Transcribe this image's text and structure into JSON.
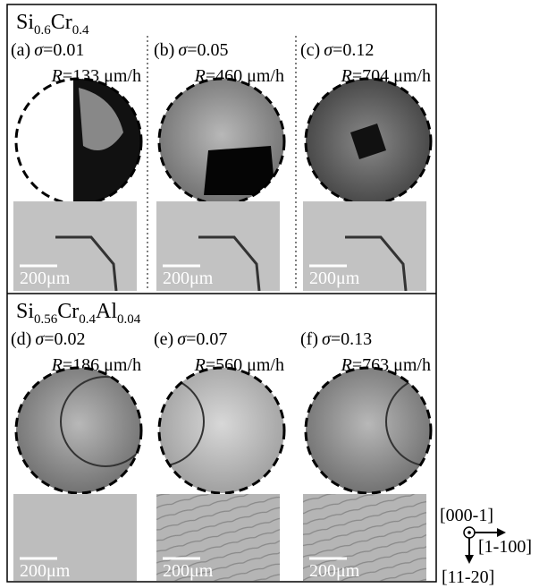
{
  "sections": [
    {
      "formula": [
        {
          "text": "Si",
          "sub": "0.6"
        },
        {
          "text": "Cr",
          "sub": "0.4"
        }
      ],
      "panels": [
        {
          "label": "(a)",
          "sigma_symbol": "σ",
          "sigma_value": "=0.01",
          "rate_symbol": "R",
          "rate_value": "=133 μm/h",
          "scale_bar": "200μm"
        },
        {
          "label": "(b)",
          "sigma_symbol": "σ",
          "sigma_value": "=0.05",
          "rate_symbol": "R",
          "rate_value": "=460 μm/h",
          "scale_bar": "200μm"
        },
        {
          "label": "(c)",
          "sigma_symbol": "σ",
          "sigma_value": "=0.12",
          "rate_symbol": "R",
          "rate_value": "=704 μm/h",
          "scale_bar": "200μm"
        }
      ]
    },
    {
      "formula": [
        {
          "text": "Si",
          "sub": "0.56"
        },
        {
          "text": "Cr",
          "sub": "0.4"
        },
        {
          "text": "Al",
          "sub": "0.04"
        }
      ],
      "panels": [
        {
          "label": "(d)",
          "sigma_symbol": "σ",
          "sigma_value": "=0.02",
          "rate_symbol": "R",
          "rate_value": "=186 μm/h",
          "scale_bar": "200μm"
        },
        {
          "label": "(e)",
          "sigma_symbol": "σ",
          "sigma_value": "=0.07",
          "rate_symbol": "R",
          "rate_value": "=560 μm/h",
          "scale_bar": "200μm"
        },
        {
          "label": "(f)",
          "sigma_symbol": "σ",
          "sigma_value": "=0.13",
          "rate_symbol": "R",
          "rate_value": "=763 μm/h",
          "scale_bar": "200μm"
        }
      ]
    }
  ],
  "axes": {
    "out_of_plane": "[000-1]",
    "right": "[1-100]",
    "down": "[11-20]"
  }
}
